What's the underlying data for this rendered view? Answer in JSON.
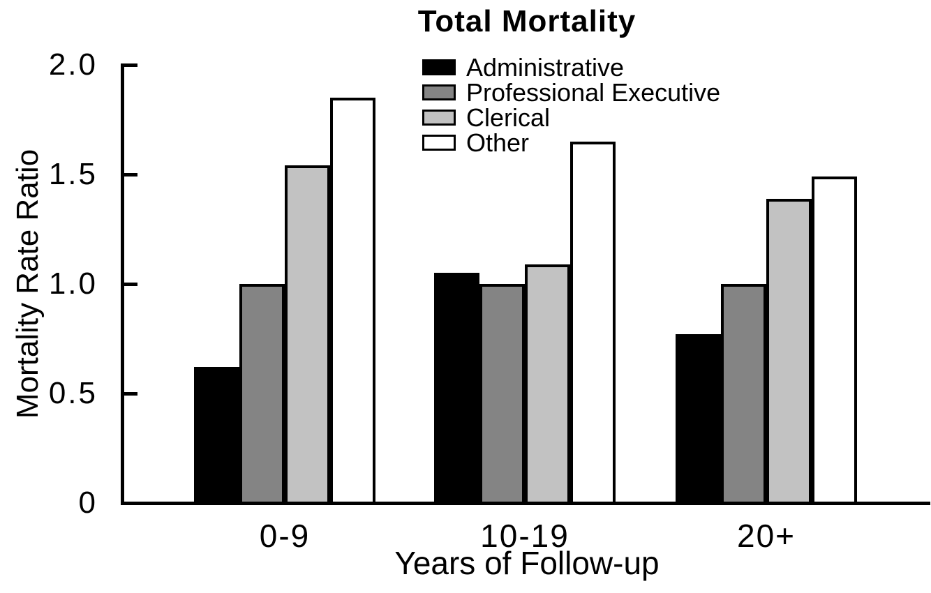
{
  "chart_data": {
    "type": "bar",
    "title": "Total Mortality",
    "xlabel": "Years of Follow-up",
    "ylabel": "Mortality Rate Ratio",
    "categories": [
      "0-9",
      "10-19",
      "20+"
    ],
    "series": [
      {
        "name": "Administrative",
        "color": "#000000",
        "values": [
          0.62,
          1.05,
          0.77
        ]
      },
      {
        "name": "Professional Executive",
        "color": "#848484",
        "values": [
          1.0,
          1.0,
          1.0
        ]
      },
      {
        "name": "Clerical",
        "color": "#c2c2c2",
        "values": [
          1.54,
          1.09,
          1.39
        ]
      },
      {
        "name": "Other",
        "color": "#ffffff",
        "values": [
          1.85,
          1.65,
          1.49
        ]
      }
    ],
    "ylim": [
      0,
      2.0
    ],
    "yticks": [
      {
        "label": "2.0",
        "value": 2.0
      },
      {
        "label": "1.5",
        "value": 1.5
      },
      {
        "label": "1.0",
        "value": 1.0
      },
      {
        "label": "0.5",
        "value": 0.5
      },
      {
        "label": "0",
        "value": 0.0
      }
    ],
    "grid": false,
    "legend_position": "upper center",
    "bar_border_color": "#000000",
    "axis_color": "#000000"
  }
}
